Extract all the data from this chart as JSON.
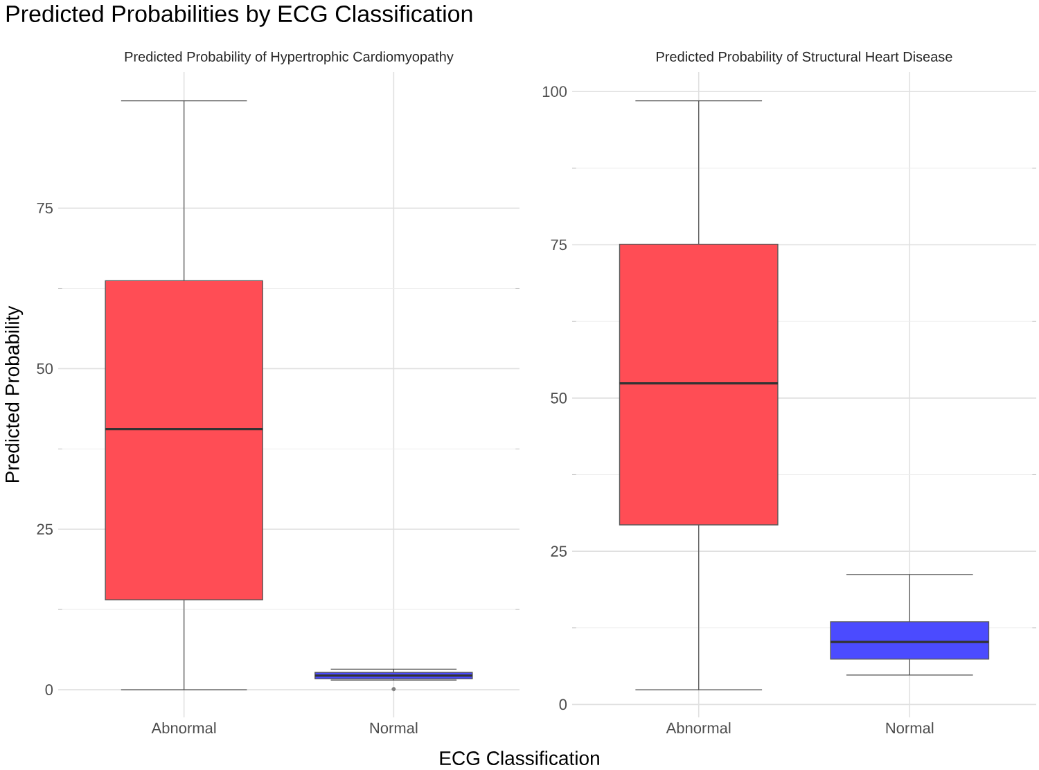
{
  "chart_data": [
    {
      "type": "box",
      "title": "Predicted Probabilities by ECG Classification",
      "subtitle": "Predicted Probability of Hypertrophic Cardiomyopathy",
      "xlabel": "ECG Classification",
      "ylabel": "Predicted Probability",
      "categories": [
        "Abnormal",
        "Normal"
      ],
      "colors": [
        "#ff4d55",
        "#4b4bff"
      ],
      "boxes": [
        {
          "low": 0,
          "q1": 14.0,
          "median": 40.6,
          "q3": 63.7,
          "high": 91.7
        },
        {
          "low": 1.5,
          "q1": 1.7,
          "median": 2.2,
          "q3": 2.7,
          "high": 3.2,
          "outliers": [
            0.1
          ]
        }
      ],
      "ylim": [
        -4.3,
        96.2
      ],
      "yticks": [
        0,
        25,
        50,
        75
      ],
      "grid": true
    },
    {
      "type": "box",
      "subtitle": "Predicted Probability of Structural Heart Disease",
      "categories": [
        "Abnormal",
        "Normal"
      ],
      "colors": [
        "#ff4d55",
        "#4b4bff"
      ],
      "boxes": [
        {
          "low": 2.4,
          "q1": 29.3,
          "median": 52.4,
          "q3": 75.1,
          "high": 98.5
        },
        {
          "low": 4.8,
          "q1": 7.4,
          "median": 10.2,
          "q3": 13.5,
          "high": 21.2
        }
      ],
      "ylim": [
        -2.1,
        103.2
      ],
      "yticks": [
        0,
        25,
        50,
        75,
        100
      ],
      "grid": true
    }
  ]
}
